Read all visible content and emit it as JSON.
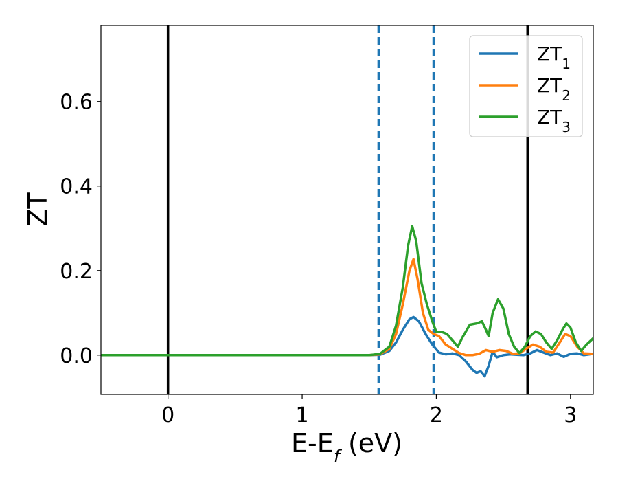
{
  "chart_data": {
    "type": "line",
    "title": "",
    "xlabel": "E-E_f (eV)",
    "ylabel": "ZT",
    "xlim": [
      -0.5,
      3.17
    ],
    "ylim": [
      -0.093,
      0.78
    ],
    "xticks": [
      0,
      1,
      2,
      3
    ],
    "yticks": [
      0.0,
      0.2,
      0.4,
      0.6
    ],
    "grid": false,
    "legend_position": "top-right",
    "vertical_lines": [
      {
        "x": 0.0,
        "style": "solid",
        "color": "#000000"
      },
      {
        "x": 2.68,
        "style": "solid",
        "color": "#000000"
      },
      {
        "x": 1.57,
        "style": "dashed",
        "color": "#1f77b4"
      },
      {
        "x": 1.98,
        "style": "dashed",
        "color": "#1f77b4"
      }
    ],
    "series": [
      {
        "name": "ZT1",
        "color": "#1f77b4",
        "points": [
          [
            -0.5,
            0
          ],
          [
            1.5,
            0
          ],
          [
            1.58,
            0.001
          ],
          [
            1.65,
            0.01
          ],
          [
            1.7,
            0.03
          ],
          [
            1.75,
            0.06
          ],
          [
            1.8,
            0.085
          ],
          [
            1.83,
            0.09
          ],
          [
            1.87,
            0.08
          ],
          [
            1.92,
            0.05
          ],
          [
            1.97,
            0.025
          ],
          [
            2.02,
            0.006
          ],
          [
            2.07,
            0.002
          ],
          [
            2.12,
            0.004
          ],
          [
            2.17,
            0.0
          ],
          [
            2.22,
            -0.015
          ],
          [
            2.27,
            -0.035
          ],
          [
            2.3,
            -0.042
          ],
          [
            2.33,
            -0.038
          ],
          [
            2.36,
            -0.05
          ],
          [
            2.39,
            -0.025
          ],
          [
            2.42,
            0.008
          ],
          [
            2.45,
            -0.005
          ],
          [
            2.5,
            0.0
          ],
          [
            2.55,
            0.002
          ],
          [
            2.6,
            0.001
          ],
          [
            2.65,
            0.0
          ],
          [
            2.7,
            0.004
          ],
          [
            2.75,
            0.012
          ],
          [
            2.8,
            0.006
          ],
          [
            2.85,
            0.0
          ],
          [
            2.9,
            0.004
          ],
          [
            2.95,
            -0.004
          ],
          [
            3.0,
            0.003
          ],
          [
            3.05,
            0.004
          ],
          [
            3.1,
            0.0
          ],
          [
            3.17,
            0.003
          ]
        ]
      },
      {
        "name": "ZT2",
        "color": "#ff7f0e",
        "points": [
          [
            -0.5,
            0
          ],
          [
            1.5,
            0
          ],
          [
            1.58,
            0.002
          ],
          [
            1.65,
            0.015
          ],
          [
            1.7,
            0.05
          ],
          [
            1.75,
            0.12
          ],
          [
            1.8,
            0.2
          ],
          [
            1.83,
            0.227
          ],
          [
            1.86,
            0.18
          ],
          [
            1.9,
            0.1
          ],
          [
            1.94,
            0.06
          ],
          [
            1.98,
            0.05
          ],
          [
            2.02,
            0.045
          ],
          [
            2.07,
            0.025
          ],
          [
            2.12,
            0.015
          ],
          [
            2.17,
            0.005
          ],
          [
            2.22,
            0.0
          ],
          [
            2.27,
            0.0
          ],
          [
            2.32,
            0.003
          ],
          [
            2.37,
            0.012
          ],
          [
            2.42,
            0.008
          ],
          [
            2.47,
            0.012
          ],
          [
            2.52,
            0.01
          ],
          [
            2.57,
            0.003
          ],
          [
            2.62,
            0.004
          ],
          [
            2.67,
            0.015
          ],
          [
            2.72,
            0.025
          ],
          [
            2.77,
            0.02
          ],
          [
            2.82,
            0.008
          ],
          [
            2.87,
            0.006
          ],
          [
            2.92,
            0.03
          ],
          [
            2.96,
            0.05
          ],
          [
            3.0,
            0.045
          ],
          [
            3.05,
            0.02
          ],
          [
            3.1,
            0.004
          ],
          [
            3.17,
            0.003
          ]
        ]
      },
      {
        "name": "ZT3",
        "color": "#2ca02c",
        "points": [
          [
            -0.5,
            0
          ],
          [
            1.5,
            0
          ],
          [
            1.58,
            0.003
          ],
          [
            1.65,
            0.02
          ],
          [
            1.7,
            0.07
          ],
          [
            1.75,
            0.16
          ],
          [
            1.79,
            0.26
          ],
          [
            1.82,
            0.305
          ],
          [
            1.85,
            0.27
          ],
          [
            1.89,
            0.17
          ],
          [
            1.93,
            0.12
          ],
          [
            1.97,
            0.08
          ],
          [
            2.0,
            0.055
          ],
          [
            2.04,
            0.055
          ],
          [
            2.08,
            0.05
          ],
          [
            2.12,
            0.035
          ],
          [
            2.16,
            0.02
          ],
          [
            2.2,
            0.045
          ],
          [
            2.25,
            0.072
          ],
          [
            2.3,
            0.075
          ],
          [
            2.34,
            0.08
          ],
          [
            2.37,
            0.06
          ],
          [
            2.39,
            0.045
          ],
          [
            2.42,
            0.1
          ],
          [
            2.46,
            0.132
          ],
          [
            2.5,
            0.11
          ],
          [
            2.54,
            0.05
          ],
          [
            2.58,
            0.02
          ],
          [
            2.62,
            0.005
          ],
          [
            2.66,
            0.02
          ],
          [
            2.7,
            0.045
          ],
          [
            2.74,
            0.056
          ],
          [
            2.78,
            0.05
          ],
          [
            2.82,
            0.03
          ],
          [
            2.86,
            0.015
          ],
          [
            2.9,
            0.035
          ],
          [
            2.94,
            0.06
          ],
          [
            2.97,
            0.075
          ],
          [
            3.0,
            0.065
          ],
          [
            3.04,
            0.03
          ],
          [
            3.08,
            0.01
          ],
          [
            3.12,
            0.025
          ],
          [
            3.17,
            0.04
          ]
        ]
      }
    ]
  }
}
